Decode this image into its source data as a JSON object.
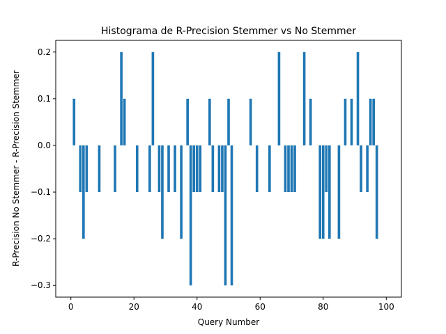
{
  "chart_data": {
    "type": "bar",
    "title": "Histograma de R-Precision Stemmer vs No Stemmer",
    "xlabel": "Query Number",
    "ylabel": "R-Precision No Stemmer - R-Precision Stemmer",
    "xlim": [
      -4.8,
      104.8
    ],
    "ylim": [
      -0.325,
      0.225
    ],
    "xticks": [
      0,
      20,
      40,
      60,
      80,
      100
    ],
    "yticks": [
      -0.3,
      -0.2,
      -0.1,
      0.0,
      0.1,
      0.2
    ],
    "ytick_labels": [
      "−0.3",
      "−0.2",
      "−0.1",
      "0.0",
      "0.1",
      "0.2"
    ],
    "bar_color": "#1f77b4",
    "grid": false,
    "x": [
      1,
      3,
      4,
      5,
      9,
      14,
      16,
      17,
      21,
      25,
      26,
      28,
      29,
      31,
      33,
      35,
      37,
      38,
      39,
      40,
      41,
      44,
      45,
      47,
      48,
      49,
      50,
      51,
      57,
      59,
      63,
      66,
      68,
      69,
      70,
      71,
      74,
      76,
      79,
      80,
      81,
      82,
      85,
      87,
      89,
      91,
      92,
      94,
      95,
      96,
      97
    ],
    "values": [
      0.1,
      -0.1,
      -0.2,
      -0.1,
      -0.1,
      -0.1,
      0.2,
      0.1,
      -0.1,
      -0.1,
      0.2,
      -0.1,
      -0.2,
      -0.1,
      -0.1,
      -0.2,
      0.1,
      -0.3,
      -0.1,
      -0.1,
      -0.1,
      0.1,
      -0.1,
      -0.1,
      -0.1,
      -0.3,
      0.1,
      -0.3,
      0.1,
      -0.1,
      -0.1,
      0.2,
      -0.1,
      -0.1,
      -0.1,
      -0.1,
      0.2,
      0.1,
      -0.2,
      -0.2,
      -0.1,
      -0.2,
      -0.2,
      0.1,
      0.1,
      0.2,
      -0.1,
      -0.1,
      0.1,
      0.1,
      -0.2
    ]
  }
}
